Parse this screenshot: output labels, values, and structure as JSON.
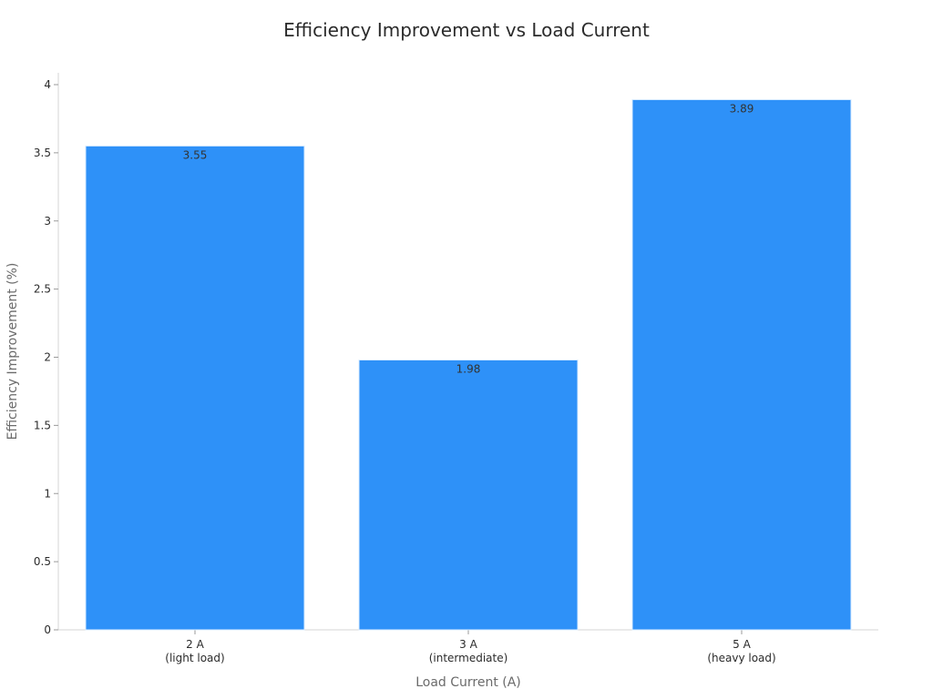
{
  "chart_data": {
    "type": "bar",
    "title": "Efficiency Improvement vs Load Current",
    "xlabel": "Load Current (A)",
    "ylabel": "Efficiency Improvement (%)",
    "categories": [
      [
        "2 A",
        "(light load)"
      ],
      [
        "3 A",
        "(intermediate)"
      ],
      [
        "5 A",
        "(heavy load)"
      ]
    ],
    "values": [
      3.55,
      1.98,
      3.89
    ],
    "data_labels": [
      "3.55",
      "1.98",
      "3.89"
    ],
    "ylim": [
      0,
      4
    ],
    "yticks": [
      0,
      0.5,
      1,
      1.5,
      2,
      2.5,
      3,
      3.5,
      4
    ],
    "ytick_labels": [
      "0",
      "0.5",
      "1",
      "1.5",
      "2",
      "2.5",
      "3",
      "3.5",
      "4"
    ],
    "grid": false,
    "legend": "none",
    "bar_color": "#2e91f8",
    "bar_edge_color": "#d9ecff"
  }
}
